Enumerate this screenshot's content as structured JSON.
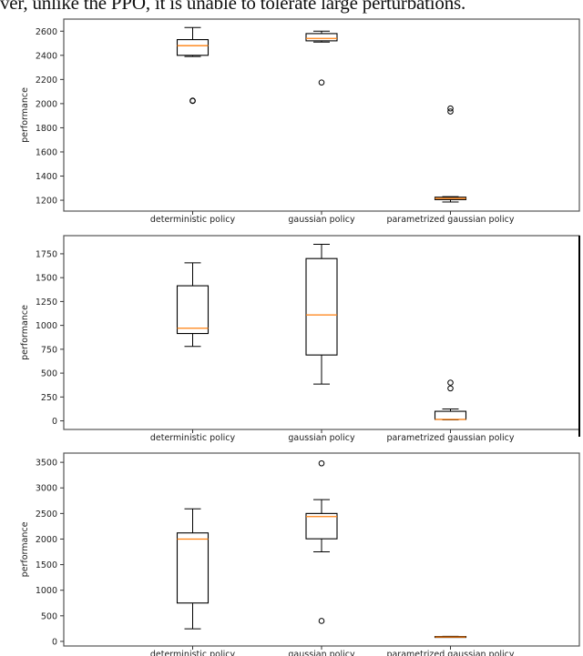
{
  "caption": "ver, unlike the PPO, it is unable to tolerate large perturbations.",
  "colors": {
    "box": "#000000",
    "median": "#ff7f0e",
    "axes": "#555555"
  },
  "chart_data": [
    {
      "type": "box",
      "ylabel": "performance",
      "categories": [
        "deterministic policy",
        "gaussian policy",
        "parametrized gaussian policy"
      ],
      "ylim": [
        1110,
        2700
      ],
      "yticks": [
        1200,
        1400,
        1600,
        1800,
        2000,
        2200,
        2400,
        2600
      ],
      "boxes": [
        {
          "whisker_low": 2390,
          "q1": 2400,
          "median": 2480,
          "q3": 2530,
          "whisker_high": 2630,
          "outliers": [
            2025,
            2022
          ]
        },
        {
          "whisker_low": 2510,
          "q1": 2520,
          "median": 2540,
          "q3": 2580,
          "whisker_high": 2600,
          "outliers": [
            2175
          ]
        },
        {
          "whisker_low": 1185,
          "q1": 1205,
          "median": 1215,
          "q3": 1225,
          "whisker_high": 1230,
          "outliers": [
            1960,
            1935
          ]
        }
      ]
    },
    {
      "type": "box",
      "ylabel": "performance",
      "categories": [
        "deterministic policy",
        "gaussian policy",
        "parametrized gaussian policy"
      ],
      "ylim": [
        -90,
        1940
      ],
      "yticks": [
        0,
        250,
        500,
        750,
        1000,
        1250,
        1500,
        1750
      ],
      "boxes": [
        {
          "whisker_low": 780,
          "q1": 915,
          "median": 970,
          "q3": 1415,
          "whisker_high": 1655,
          "outliers": []
        },
        {
          "whisker_low": 385,
          "q1": 690,
          "median": 1110,
          "q3": 1700,
          "whisker_high": 1850,
          "outliers": []
        },
        {
          "whisker_low": 10,
          "q1": 15,
          "median": 15,
          "q3": 100,
          "whisker_high": 125,
          "outliers": [
            400,
            340
          ]
        }
      ]
    },
    {
      "type": "box",
      "ylabel": "performance",
      "categories": [
        "deterministic policy",
        "gaussian policy",
        "parametrized gaussian policy"
      ],
      "ylim": [
        -90,
        3680
      ],
      "yticks": [
        0,
        500,
        1000,
        1500,
        2000,
        2500,
        3000,
        3500
      ],
      "boxes": [
        {
          "whisker_low": 245,
          "q1": 750,
          "median": 2000,
          "q3": 2120,
          "whisker_high": 2590,
          "outliers": []
        },
        {
          "whisker_low": 1750,
          "q1": 2005,
          "median": 2440,
          "q3": 2500,
          "whisker_high": 2770,
          "outliers": [
            3480,
            400
          ]
        },
        {
          "whisker_low": 80,
          "q1": 80,
          "median": 85,
          "q3": 95,
          "whisker_high": 100,
          "outliers": []
        }
      ]
    }
  ]
}
